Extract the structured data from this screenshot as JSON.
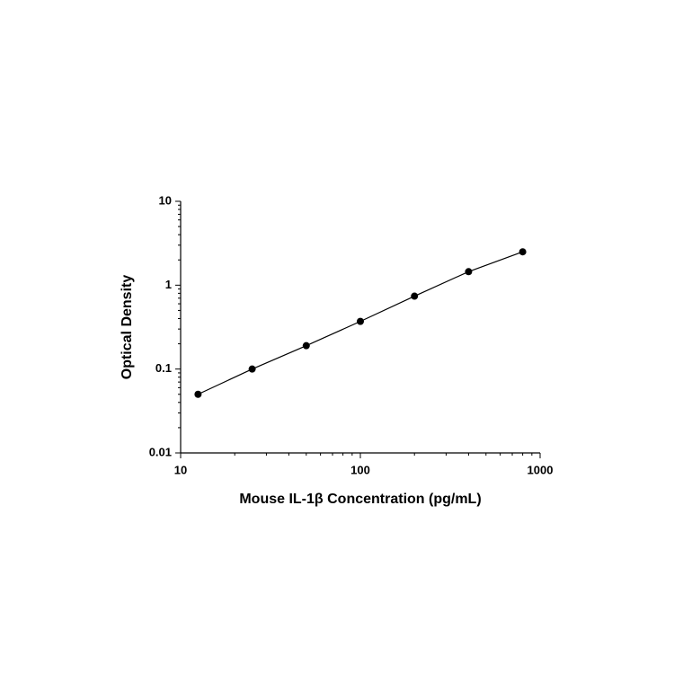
{
  "chart_data": {
    "type": "scatter",
    "x_label": "Mouse IL-1β Concentration (pg/mL)",
    "y_label": "Optical Density",
    "x": [
      12.5,
      25,
      50,
      100,
      200,
      400,
      800
    ],
    "values": [
      0.05,
      0.1,
      0.19,
      0.37,
      0.74,
      1.45,
      2.5
    ],
    "color": "#000000",
    "line": true,
    "xlog": true,
    "ylog": true,
    "minor_ticks": true,
    "xlim": [
      10,
      1000
    ],
    "ylim": [
      0.01,
      10
    ],
    "xticks": [
      10,
      100,
      1000
    ],
    "yticks": [
      0.01,
      0.1,
      1,
      10
    ]
  }
}
